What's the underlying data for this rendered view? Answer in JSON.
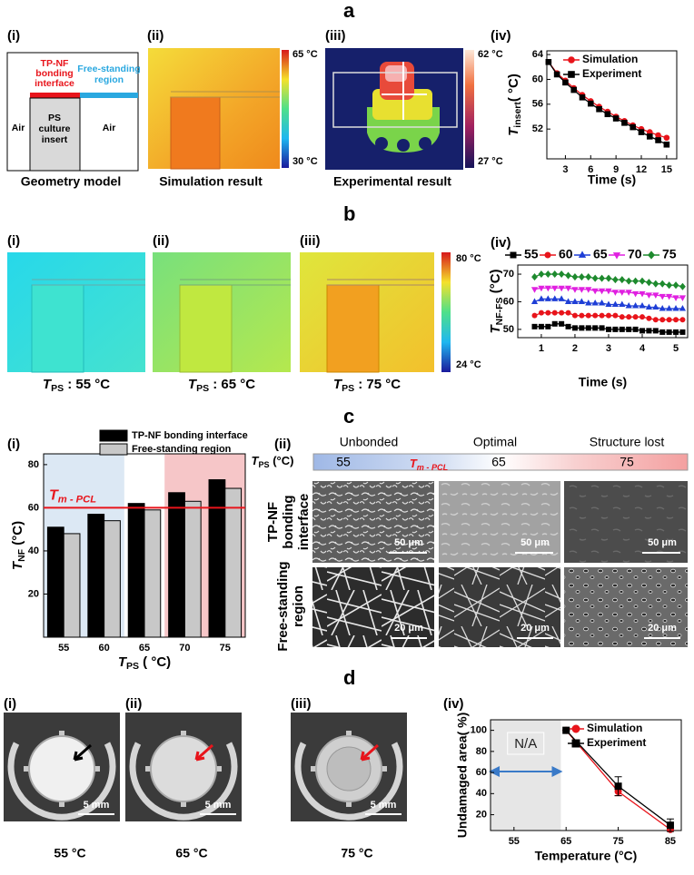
{
  "figure": {
    "a": {
      "letter": "a",
      "i": {
        "label": "(i)",
        "bonding_interface": [
          "TP-NF",
          "bonding",
          "interface"
        ],
        "free_standing": [
          "Free-standing",
          "region"
        ],
        "air_left": "Air",
        "insert": [
          "PS",
          "culture",
          "insert"
        ],
        "air_right": "Air",
        "caption": "Geometry model"
      },
      "ii": {
        "label": "(ii)",
        "colorbar": [
          "65 °C",
          "30 °C"
        ],
        "caption": "Simulation result"
      },
      "iii": {
        "label": "(iii)",
        "colorbar": [
          "62 °C",
          "27 °C"
        ],
        "caption": "Experimental result"
      },
      "iv": {
        "label": "(iv)"
      }
    },
    "b": {
      "letter": "b",
      "panels": [
        {
          "label": "(i)",
          "caption": {
            "text": "T",
            "sub": "PS",
            "unit": " : 55 °C"
          }
        },
        {
          "label": "(ii)",
          "caption": {
            "text": "T",
            "sub": "PS",
            "unit": " : 65 °C"
          }
        },
        {
          "label": "(iii)",
          "caption": {
            "text": "T",
            "sub": "PS",
            "unit": " : 75 °C"
          }
        }
      ],
      "colorbar": [
        "80 °C",
        "24 °C"
      ],
      "iv_label": "(iv)"
    },
    "c": {
      "letter": "c",
      "i_label": "(i)",
      "ii": {
        "label": "(ii)",
        "columns": [
          "Unbonded",
          "Optimal",
          "Structure lost"
        ],
        "axis_label": {
          "text": "T",
          "sub": "PS",
          "unit": " (°C)"
        },
        "temps": [
          "55",
          "65",
          "75"
        ],
        "melt": {
          "text": "T",
          "sub": "m - PCL"
        },
        "rows": [
          [
            "TP-NF",
            "bonding",
            "interface"
          ],
          [
            "Free-standing",
            "region"
          ]
        ],
        "scale_bars": [
          [
            "50 μm",
            "50 μm",
            "50 μm"
          ],
          [
            "20 μm",
            "20 μm",
            "20 μm"
          ]
        ]
      }
    },
    "d": {
      "letter": "d",
      "photos": [
        {
          "label": "(i)",
          "scale": "5 mm",
          "caption": "55 °C"
        },
        {
          "label": "(ii)",
          "scale": "5 mm",
          "caption": "65 °C"
        },
        {
          "label": "(iii)",
          "scale": "5 mm",
          "caption": "75 °C"
        }
      ],
      "iv_label": "(iv)"
    }
  },
  "chart_data": [
    {
      "type": "line",
      "x": [
        1,
        2,
        3,
        4,
        5,
        6,
        7,
        8,
        9,
        10,
        11,
        12,
        13,
        14,
        15
      ],
      "xlim": [
        0.8,
        16.2
      ],
      "ylim": [
        47.2,
        64.6
      ],
      "xticks": [
        3,
        6,
        9,
        12,
        15
      ],
      "yticks": [
        52,
        56,
        60,
        64
      ],
      "x_label": "Time (s)",
      "y_label": {
        "text": "T",
        "sub": "insert",
        "unit": "( °C)"
      },
      "legend": "upper right",
      "series": [
        {
          "name": "Simulation",
          "color": "#e8141b",
          "marker": "circle",
          "values": [
            62.8,
            61.0,
            59.8,
            58.6,
            57.5,
            56.5,
            55.6,
            54.8,
            54.0,
            53.3,
            52.6,
            52.0,
            51.5,
            51.0,
            50.6
          ]
        },
        {
          "name": "Experiment",
          "color": "#000000",
          "marker": "square",
          "values": [
            62.8,
            60.8,
            59.5,
            58.3,
            57.1,
            56.1,
            55.2,
            54.4,
            53.7,
            53.0,
            52.3,
            51.5,
            50.8,
            50.2,
            49.5
          ]
        }
      ]
    },
    {
      "type": "line",
      "x": [
        0.8,
        1.0,
        1.2,
        1.4,
        1.6,
        1.8,
        2.0,
        2.2,
        2.4,
        2.6,
        2.8,
        3.0,
        3.2,
        3.4,
        3.6,
        3.8,
        4.0,
        4.2,
        4.4,
        4.6,
        4.8,
        5.0,
        5.2
      ],
      "xlim": [
        0.3,
        5.35
      ],
      "ylim": [
        47,
        73.3
      ],
      "xticks": [
        1,
        2,
        3,
        4,
        5
      ],
      "yticks": [
        50,
        60,
        70
      ],
      "x_label": "Time (s)",
      "y_label": {
        "text": "T",
        "sub": "NF-FS",
        "unit": " (°C)"
      },
      "legend": "top",
      "series": [
        {
          "name": "55",
          "color": "#000000",
          "marker": "square",
          "values": [
            51,
            51,
            51,
            52,
            52,
            51,
            50.5,
            50.5,
            50.5,
            50.5,
            50.5,
            50,
            50,
            50,
            50,
            50,
            49.5,
            49.5,
            49.5,
            49,
            49,
            49,
            49
          ]
        },
        {
          "name": "60",
          "color": "#e8141b",
          "marker": "circle",
          "values": [
            55,
            56,
            56,
            56,
            56,
            56,
            55,
            55,
            55,
            55,
            55,
            55,
            55,
            54.5,
            54.5,
            54.5,
            54.5,
            54,
            53.5,
            53.5,
            53.5,
            53.5,
            53.5
          ]
        },
        {
          "name": "65",
          "color": "#1f3fd6",
          "marker": "triangle",
          "values": [
            60,
            61,
            61,
            61,
            61,
            60,
            60,
            60,
            59.5,
            59.5,
            59.5,
            59,
            59,
            59,
            58.5,
            58.5,
            58.5,
            58,
            58,
            57.5,
            57.5,
            57.5,
            57.5
          ]
        },
        {
          "name": "70",
          "color": "#e020e0",
          "marker": "triangle-down",
          "values": [
            64.5,
            65,
            65,
            65,
            65,
            65,
            64.5,
            64.5,
            64.5,
            64,
            64,
            64,
            63.5,
            63.5,
            63.5,
            63,
            63,
            62.5,
            62.5,
            62,
            62,
            61.5,
            61.5
          ]
        },
        {
          "name": "75",
          "color": "#1e8a2e",
          "marker": "diamond",
          "values": [
            69,
            70,
            70,
            70,
            70,
            69.5,
            69,
            69,
            69,
            68.5,
            68.5,
            68.5,
            68,
            68,
            67.5,
            67.5,
            67.5,
            67,
            66.5,
            66.5,
            66,
            66,
            65.5
          ]
        }
      ]
    },
    {
      "type": "bar",
      "categories": [
        "55",
        "60",
        "65",
        "70",
        "75"
      ],
      "ylim": [
        0,
        85
      ],
      "yticks": [
        20,
        40,
        60,
        80
      ],
      "x_label": {
        "text": "T",
        "sub": "PS",
        "unit": " ( °C)"
      },
      "y_label": {
        "text": "T",
        "sub": "NF",
        "unit": " (°C)"
      },
      "legend": "above",
      "bands": [
        {
          "categories": [
            "55",
            "60"
          ],
          "color": "#dce8f4"
        },
        {
          "categories": [
            "70",
            "75"
          ],
          "color": "#f6c6c8"
        }
      ],
      "reference_line": {
        "value": 60,
        "color": "#e8141b",
        "label": {
          "text": "T",
          "sub": "m - PCL"
        }
      },
      "series": [
        {
          "name": "TP-NF bonding interface",
          "color": "#000000",
          "values": [
            51,
            57,
            62,
            67,
            73
          ]
        },
        {
          "name": "Free-standing region",
          "color": "#c8c8c8",
          "values": [
            48,
            54,
            59,
            63,
            69
          ]
        }
      ]
    },
    {
      "type": "line",
      "x": [
        65,
        75,
        85
      ],
      "xlim": [
        50.5,
        87.1
      ],
      "ylim": [
        5,
        110
      ],
      "xticks": [
        55,
        65,
        75,
        85
      ],
      "yticks": [
        20,
        40,
        60,
        80,
        100
      ],
      "x_label": "Temperature (°C)",
      "y_label": "Undamaged area( %)",
      "legend": "upper right",
      "shade": {
        "xrange": [
          50.5,
          64
        ],
        "label": "N/A",
        "color": "#e6e6e6"
      },
      "series": [
        {
          "name": "Simulation",
          "color": "#e8141b",
          "marker": "circle",
          "values": [
            100,
            42,
            6
          ],
          "errors": [
            0,
            4,
            0
          ]
        },
        {
          "name": "Experiment",
          "color": "#000000",
          "marker": "square",
          "values": [
            100,
            47,
            10
          ],
          "errors": [
            0,
            9,
            6
          ]
        }
      ]
    }
  ]
}
